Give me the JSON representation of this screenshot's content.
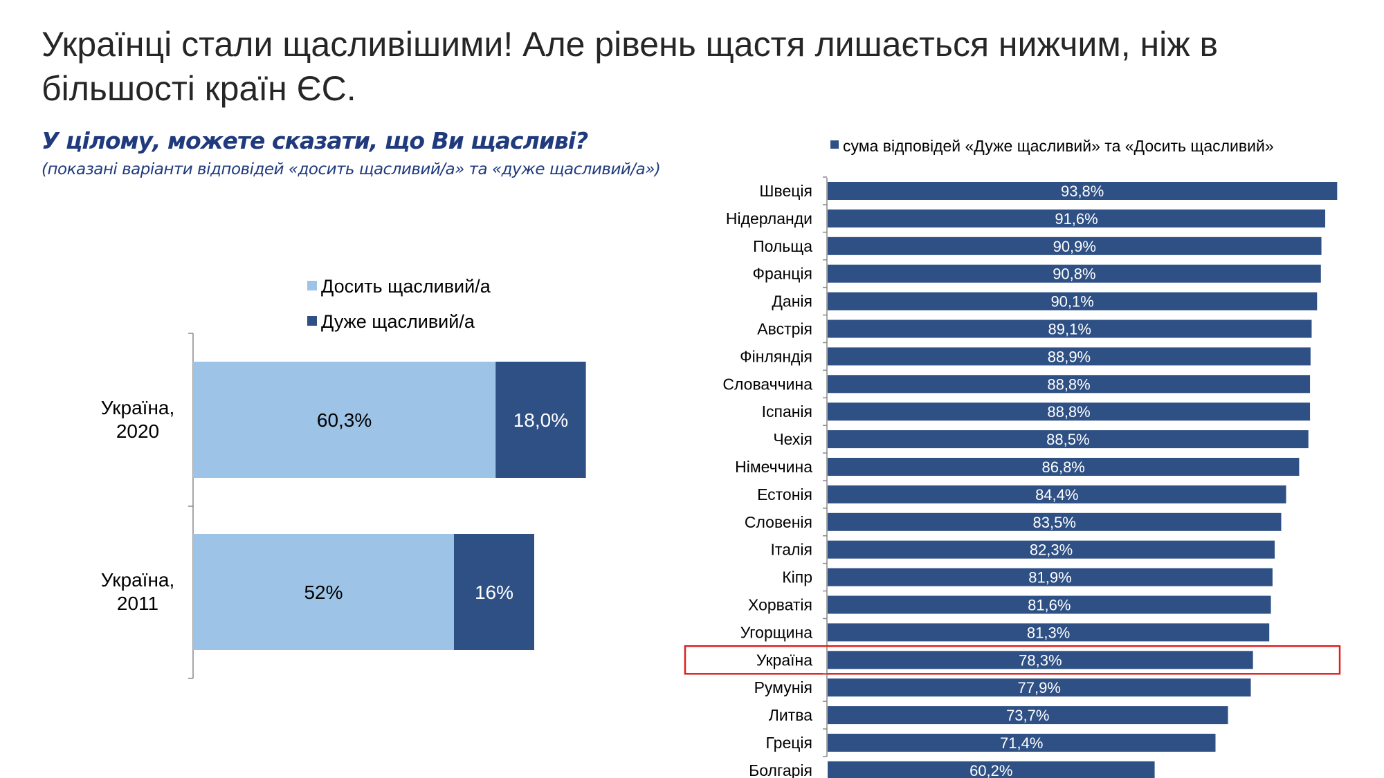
{
  "title": "Українці стали щасливішими! Але рівень щастя лишається нижчим, ніж в більшості країн ЄС.",
  "question": "У цілому, можете сказати, що Ви щасливі?",
  "question_note": "(показані варіанти відповідей «досить щасливий/а» та «дуже щасливий/а»)",
  "colors": {
    "light": "#9dc3e6",
    "dark": "#2e5084",
    "highlight": "#e02020"
  },
  "chart_data": [
    {
      "type": "bar",
      "orientation": "horizontal",
      "stacked": true,
      "categories": [
        "Україна, 2020",
        "Україна, 2011"
      ],
      "category_lines": [
        [
          "Україна,",
          "2020"
        ],
        [
          "Україна,",
          "2011"
        ]
      ],
      "series": [
        {
          "name": "Досить щасливий/а",
          "values": [
            60.3,
            52
          ],
          "labels": [
            "60,3%",
            "52%"
          ],
          "color": "#9dc3e6"
        },
        {
          "name": "Дуже щасливий/а",
          "values": [
            18.0,
            16
          ],
          "labels": [
            "18,0%",
            "16%"
          ],
          "color": "#2e5084"
        }
      ],
      "legend": "top",
      "grid": false
    },
    {
      "type": "bar",
      "orientation": "horizontal",
      "series": [
        {
          "name": "сума відповідей «Дуже щасливий» та «Досить щасливий»",
          "color": "#2e5084"
        }
      ],
      "categories": [
        "Швеція",
        "Нідерланди",
        "Польща",
        "Франція",
        "Данія",
        "Австрія",
        "Фінляндія",
        "Словаччина",
        "Іспанія",
        "Чехія",
        "Німеччина",
        "Естонія",
        "Словенія",
        "Італія",
        "Кіпр",
        "Хорватія",
        "Угорщина",
        "Україна",
        "Румунія",
        "Литва",
        "Греція",
        "Болгарія"
      ],
      "values": [
        93.8,
        91.6,
        90.9,
        90.8,
        90.1,
        89.1,
        88.9,
        88.8,
        88.8,
        88.5,
        86.8,
        84.4,
        83.5,
        82.3,
        81.9,
        81.6,
        81.3,
        78.3,
        77.9,
        73.7,
        71.4,
        60.2
      ],
      "labels": [
        "93,8%",
        "91,6%",
        "90,9%",
        "90,8%",
        "90,1%",
        "89,1%",
        "88,9%",
        "88,8%",
        "88,8%",
        "88,5%",
        "86,8%",
        "84,4%",
        "83,5%",
        "82,3%",
        "81,9%",
        "81,6%",
        "81,3%",
        "78,3%",
        "77,9%",
        "73,7%",
        "71,4%",
        "60,2%"
      ],
      "highlighted": "Україна",
      "legend": "top",
      "grid": false
    }
  ]
}
